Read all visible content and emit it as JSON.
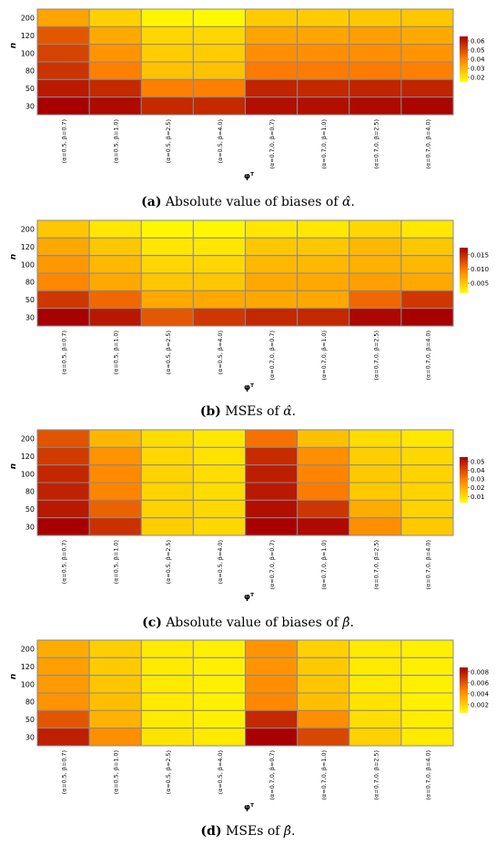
{
  "colors": {
    "cell_border": "#8a8a8a",
    "scale_low": "#ffff00",
    "scale_mid": "#ff8000",
    "scale_high": "#a80000"
  },
  "panels": [
    {
      "caption": {
        "label": "(a)",
        "text": "Absolute value of biases of",
        "symbol": "α̂"
      },
      "xlabel": "φᵀ",
      "ylabel": "n",
      "legend_ticks": [
        "0.06",
        "0.05",
        "0.04",
        "0.03",
        "0.02"
      ]
    },
    {
      "caption": {
        "label": "(b)",
        "text": "MSEs of",
        "symbol": "α̂"
      },
      "xlabel": "φᵀ",
      "ylabel": "n",
      "legend_ticks": [
        "0.015",
        "0.010",
        "0.005"
      ]
    },
    {
      "caption": {
        "label": "(c)",
        "text": "Absolute value of biases of",
        "symbol": "β̂"
      },
      "xlabel": "φᵀ",
      "ylabel": "n",
      "legend_ticks": [
        "0.05",
        "0.04",
        "0.03",
        "0.02",
        "0.01"
      ]
    },
    {
      "caption": {
        "label": "(d)",
        "text": "MSEs of",
        "symbol": "β̂"
      },
      "xlabel": "φᵀ",
      "ylabel": "n",
      "legend_ticks": [
        "0.008",
        "0.006",
        "0.004",
        "0.002"
      ]
    }
  ],
  "chart_data": [
    {
      "type": "heatmap",
      "title": "Absolute value of biases of α̂",
      "xlabel": "φᵀ",
      "ylabel": "n",
      "categories": [
        "(α=0.5, β=0.7)",
        "(α=0.5, β=1.0)",
        "(α=0.5, β=2.5)",
        "(α=0.5, β=4.0)",
        "(α=0.7,0, β=0.7)",
        "(α=0.7,0, β=1.0)",
        "(α=0.7,0, β=2.5)",
        "(α=0.7,0, β=4.0)"
      ],
      "rows": [
        "200",
        "120",
        "100",
        "80",
        "50",
        "30"
      ],
      "legend_ticks": [
        0.06,
        0.05,
        0.04,
        0.03,
        0.02
      ],
      "range": [
        0.015,
        0.065
      ],
      "values": [
        [
          0.033,
          0.024,
          0.017,
          0.016,
          0.025,
          0.025,
          0.026,
          0.026
        ],
        [
          0.048,
          0.032,
          0.023,
          0.023,
          0.033,
          0.033,
          0.034,
          0.032
        ],
        [
          0.052,
          0.036,
          0.025,
          0.025,
          0.037,
          0.037,
          0.037,
          0.036
        ],
        [
          0.055,
          0.04,
          0.027,
          0.027,
          0.041,
          0.041,
          0.041,
          0.04
        ],
        [
          0.06,
          0.057,
          0.04,
          0.04,
          0.058,
          0.057,
          0.058,
          0.058
        ],
        [
          0.066,
          0.063,
          0.057,
          0.057,
          0.062,
          0.062,
          0.063,
          0.064
        ]
      ]
    },
    {
      "type": "heatmap",
      "title": "MSEs of α̂",
      "xlabel": "φᵀ",
      "ylabel": "n",
      "categories": [
        "(α=0.5, β=0.7)",
        "(α=0.5, β=1.0)",
        "(α=0.5, β=2.5)",
        "(α=0.5, β=4.0)",
        "(α=0.7,0, β=0.7)",
        "(α=0.7,0, β=1.0)",
        "(α=0.7,0, β=2.5)",
        "(α=0.7,0, β=4.0)"
      ],
      "rows": [
        "200",
        "120",
        "100",
        "80",
        "50",
        "30"
      ],
      "legend_ticks": [
        0.015,
        0.01,
        0.005
      ],
      "range": [
        0.0015,
        0.0175
      ],
      "values": [
        [
          0.005,
          0.003,
          0.002,
          0.002,
          0.003,
          0.003,
          0.004,
          0.003
        ],
        [
          0.007,
          0.005,
          0.003,
          0.003,
          0.005,
          0.005,
          0.006,
          0.005
        ],
        [
          0.008,
          0.006,
          0.004,
          0.004,
          0.006,
          0.006,
          0.0065,
          0.006
        ],
        [
          0.009,
          0.007,
          0.005,
          0.005,
          0.007,
          0.007,
          0.0075,
          0.007
        ],
        [
          0.014,
          0.011,
          0.007,
          0.007,
          0.007,
          0.007,
          0.011,
          0.014
        ],
        [
          0.0175,
          0.016,
          0.012,
          0.014,
          0.015,
          0.015,
          0.017,
          0.0175
        ]
      ]
    },
    {
      "type": "heatmap",
      "title": "Absolute value of biases of β̂",
      "xlabel": "φᵀ",
      "ylabel": "n",
      "categories": [
        "(α=0.5, β=0.7)",
        "(α=0.5, β=1.0)",
        "(α=0.5, β=2.5)",
        "(α=0.5, β=4.0)",
        "(α=0.7,0, β=0.7)",
        "(α=0.7,0, β=1.0)",
        "(α=0.7,0, β=2.5)",
        "(α=0.7,0, β=4.0)"
      ],
      "rows": [
        "200",
        "120",
        "100",
        "80",
        "50",
        "30"
      ],
      "legend_ticks": [
        0.05,
        0.04,
        0.03,
        0.02,
        0.01
      ],
      "range": [
        0.003,
        0.055
      ],
      "values": [
        [
          0.038,
          0.018,
          0.01,
          0.008,
          0.032,
          0.016,
          0.01,
          0.008
        ],
        [
          0.043,
          0.025,
          0.011,
          0.009,
          0.046,
          0.026,
          0.013,
          0.011
        ],
        [
          0.047,
          0.027,
          0.012,
          0.01,
          0.049,
          0.028,
          0.014,
          0.012
        ],
        [
          0.048,
          0.028,
          0.012,
          0.01,
          0.05,
          0.03,
          0.014,
          0.012
        ],
        [
          0.05,
          0.035,
          0.012,
          0.011,
          0.052,
          0.044,
          0.02,
          0.012
        ],
        [
          0.055,
          0.045,
          0.013,
          0.011,
          0.056,
          0.053,
          0.026,
          0.014
        ]
      ]
    },
    {
      "type": "heatmap",
      "title": "MSEs of β̂",
      "xlabel": "φᵀ",
      "ylabel": "n",
      "categories": [
        "(α=0.5, β=0.7)",
        "(α=0.5, β=1.0)",
        "(α=0.5, β=2.5)",
        "(α=0.5, β=4.0)",
        "(α=0.7,0, β=0.7)",
        "(α=0.7,0, β=1.0)",
        "(α=0.7,0, β=2.5)",
        "(α=0.7,0, β=4.0)"
      ],
      "rows": [
        "200",
        "120",
        "100",
        "80",
        "50",
        "30"
      ],
      "legend_ticks": [
        0.008,
        0.006,
        0.004,
        0.002
      ],
      "range": [
        0.0005,
        0.0088
      ],
      "values": [
        [
          0.0032,
          0.0021,
          0.0012,
          0.001,
          0.004,
          0.002,
          0.0012,
          0.001
        ],
        [
          0.0036,
          0.0022,
          0.0012,
          0.001,
          0.004,
          0.0022,
          0.0012,
          0.001
        ],
        [
          0.0038,
          0.0024,
          0.0012,
          0.001,
          0.0042,
          0.0024,
          0.0012,
          0.001
        ],
        [
          0.004,
          0.0026,
          0.0012,
          0.001,
          0.0044,
          0.0026,
          0.0014,
          0.001
        ],
        [
          0.006,
          0.003,
          0.0012,
          0.001,
          0.0075,
          0.0042,
          0.0016,
          0.0011
        ],
        [
          0.0078,
          0.0042,
          0.0014,
          0.0012,
          0.0088,
          0.0065,
          0.002,
          0.0012
        ]
      ]
    }
  ]
}
